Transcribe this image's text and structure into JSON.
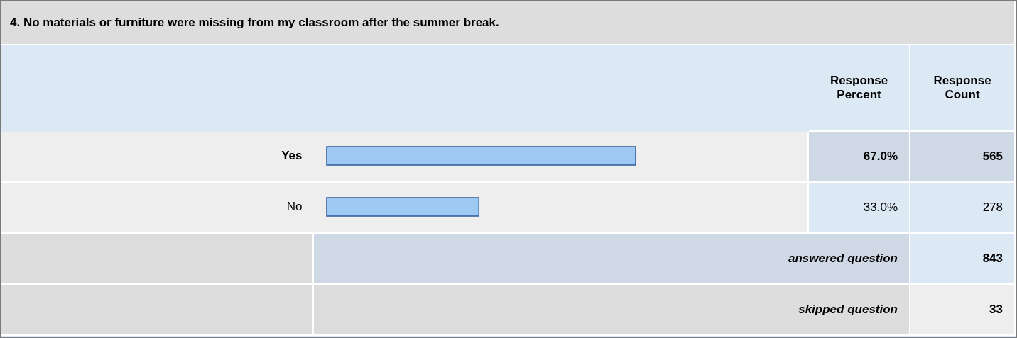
{
  "chart_data": {
    "type": "bar",
    "orientation": "horizontal",
    "title": "4. No materials or furniture were missing from my classroom after the summer break.",
    "categories": [
      "Yes",
      "No"
    ],
    "values": [
      67.0,
      33.0
    ],
    "color": "#9ec9f2",
    "value_labels": [
      "67.0%",
      "33.0%"
    ],
    "tick_labels": "y",
    "annotations": [
      "Response Percent",
      "Response Count",
      "565",
      "278",
      "answered question",
      "843",
      "skipped question",
      "33"
    ]
  }
}
